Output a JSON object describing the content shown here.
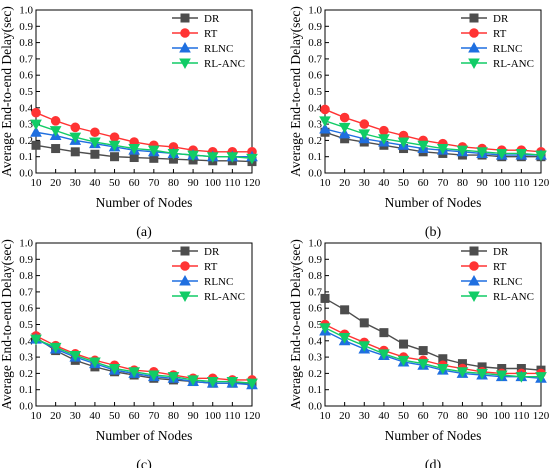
{
  "colors": {
    "DR": "#4d4d4d",
    "RT": "#ff3333",
    "RLNC": "#1f6fe0",
    "RL-ANC": "#11cc66",
    "marker_DR": "square",
    "marker_RT": "circle",
    "marker_RLNC": "triangle-up",
    "marker_RL-ANC": "triangle-down"
  },
  "chart_data": [
    {
      "panel_label": "(a)",
      "type": "line",
      "xlabel": "Number of Nodes",
      "ylabel": "Average End-to-end Delay(sec)",
      "x": [
        10,
        20,
        30,
        40,
        50,
        60,
        70,
        80,
        90,
        100,
        110,
        120
      ],
      "xticks": [
        "10",
        "20",
        "30",
        "40",
        "50",
        "60",
        "70",
        "80",
        "90",
        "100",
        "110",
        "120"
      ],
      "xlim": [
        10,
        120
      ],
      "ylim": [
        0.0,
        1.0
      ],
      "yticks": [
        "0.0",
        "0.1",
        "0.2",
        "0.3",
        "0.4",
        "0.5",
        "0.6",
        "0.7",
        "0.8",
        "0.9",
        "1.0"
      ],
      "legend_position": "top-right",
      "grid": false,
      "series": [
        {
          "name": "DR",
          "values": [
            0.17,
            0.15,
            0.13,
            0.115,
            0.1,
            0.095,
            0.09,
            0.085,
            0.08,
            0.075,
            0.075,
            0.07
          ]
        },
        {
          "name": "RT",
          "values": [
            0.37,
            0.32,
            0.28,
            0.25,
            0.22,
            0.19,
            0.17,
            0.16,
            0.14,
            0.13,
            0.13,
            0.13
          ]
        },
        {
          "name": "RLNC",
          "values": [
            0.25,
            0.23,
            0.2,
            0.18,
            0.16,
            0.14,
            0.13,
            0.12,
            0.11,
            0.1,
            0.1,
            0.1
          ]
        },
        {
          "name": "RL-ANC",
          "values": [
            0.3,
            0.26,
            0.22,
            0.19,
            0.17,
            0.15,
            0.14,
            0.12,
            0.11,
            0.1,
            0.1,
            0.09
          ]
        }
      ]
    },
    {
      "panel_label": "(b)",
      "type": "line",
      "xlabel": "Number of Nodes",
      "ylabel": "Average End-to-end Delay(sec)",
      "x": [
        10,
        20,
        30,
        40,
        50,
        60,
        70,
        80,
        90,
        100,
        110,
        120
      ],
      "xticks": [
        "10",
        "20",
        "30",
        "40",
        "50",
        "60",
        "70",
        "80",
        "90",
        "100",
        "110",
        "120"
      ],
      "xlim": [
        10,
        120
      ],
      "ylim": [
        0.0,
        1.0
      ],
      "yticks": [
        "0.0",
        "0.1",
        "0.2",
        "0.3",
        "0.4",
        "0.5",
        "0.6",
        "0.7",
        "0.8",
        "0.9",
        "1.0"
      ],
      "legend_position": "top-right",
      "grid": false,
      "series": [
        {
          "name": "DR",
          "values": [
            0.25,
            0.21,
            0.19,
            0.17,
            0.15,
            0.13,
            0.12,
            0.11,
            0.11,
            0.1,
            0.1,
            0.1
          ]
        },
        {
          "name": "RT",
          "values": [
            0.39,
            0.34,
            0.3,
            0.26,
            0.23,
            0.2,
            0.18,
            0.16,
            0.15,
            0.14,
            0.14,
            0.13
          ]
        },
        {
          "name": "RLNC",
          "values": [
            0.27,
            0.24,
            0.21,
            0.19,
            0.17,
            0.15,
            0.14,
            0.13,
            0.12,
            0.11,
            0.11,
            0.11
          ]
        },
        {
          "name": "RL-ANC",
          "values": [
            0.32,
            0.28,
            0.24,
            0.21,
            0.19,
            0.17,
            0.15,
            0.14,
            0.13,
            0.12,
            0.12,
            0.11
          ]
        }
      ]
    },
    {
      "panel_label": "(c)",
      "type": "line",
      "xlabel": "Number of Nodes",
      "ylabel": "Average End-to-end Delay(sec)",
      "x": [
        10,
        20,
        30,
        40,
        50,
        60,
        70,
        80,
        90,
        100,
        110,
        120
      ],
      "xticks": [
        "10",
        "20",
        "30",
        "40",
        "50",
        "60",
        "70",
        "80",
        "90",
        "100",
        "110",
        "120"
      ],
      "xlim": [
        10,
        120
      ],
      "ylim": [
        0.0,
        1.0
      ],
      "yticks": [
        "0.0",
        "0.1",
        "0.2",
        "0.3",
        "0.4",
        "0.5",
        "0.6",
        "0.7",
        "0.8",
        "0.9",
        "1.0"
      ],
      "legend_position": "top-right",
      "grid": false,
      "series": [
        {
          "name": "DR",
          "values": [
            0.42,
            0.34,
            0.28,
            0.24,
            0.21,
            0.19,
            0.17,
            0.16,
            0.15,
            0.14,
            0.14,
            0.14
          ]
        },
        {
          "name": "RT",
          "values": [
            0.43,
            0.37,
            0.32,
            0.28,
            0.25,
            0.22,
            0.21,
            0.19,
            0.17,
            0.17,
            0.16,
            0.16
          ]
        },
        {
          "name": "RLNC",
          "values": [
            0.41,
            0.35,
            0.3,
            0.26,
            0.22,
            0.2,
            0.18,
            0.17,
            0.15,
            0.14,
            0.14,
            0.13
          ]
        },
        {
          "name": "RL-ANC",
          "values": [
            0.41,
            0.36,
            0.31,
            0.27,
            0.23,
            0.21,
            0.19,
            0.18,
            0.16,
            0.15,
            0.15,
            0.14
          ]
        }
      ]
    },
    {
      "panel_label": "(d)",
      "type": "line",
      "xlabel": "Number of Nodes",
      "ylabel": "Average End-to-end Delay(sec)",
      "x": [
        10,
        20,
        30,
        40,
        50,
        60,
        70,
        80,
        90,
        100,
        110,
        120
      ],
      "xticks": [
        "10",
        "20",
        "30",
        "40",
        "50",
        "60",
        "70",
        "80",
        "90",
        "100",
        "110",
        "120"
      ],
      "xlim": [
        10,
        120
      ],
      "ylim": [
        0.0,
        1.0
      ],
      "yticks": [
        "0.0",
        "0.1",
        "0.2",
        "0.3",
        "0.4",
        "0.5",
        "0.6",
        "0.7",
        "0.8",
        "0.9",
        "1.0"
      ],
      "legend_position": "top-right",
      "grid": false,
      "series": [
        {
          "name": "DR",
          "values": [
            0.66,
            0.59,
            0.51,
            0.45,
            0.38,
            0.34,
            0.29,
            0.26,
            0.24,
            0.23,
            0.23,
            0.22
          ]
        },
        {
          "name": "RT",
          "values": [
            0.5,
            0.44,
            0.39,
            0.34,
            0.3,
            0.28,
            0.25,
            0.23,
            0.21,
            0.2,
            0.2,
            0.2
          ]
        },
        {
          "name": "RLNC",
          "values": [
            0.46,
            0.4,
            0.35,
            0.31,
            0.27,
            0.25,
            0.22,
            0.2,
            0.19,
            0.18,
            0.18,
            0.17
          ]
        },
        {
          "name": "RL-ANC",
          "values": [
            0.48,
            0.42,
            0.37,
            0.32,
            0.28,
            0.26,
            0.23,
            0.21,
            0.2,
            0.19,
            0.18,
            0.18
          ]
        }
      ]
    }
  ]
}
